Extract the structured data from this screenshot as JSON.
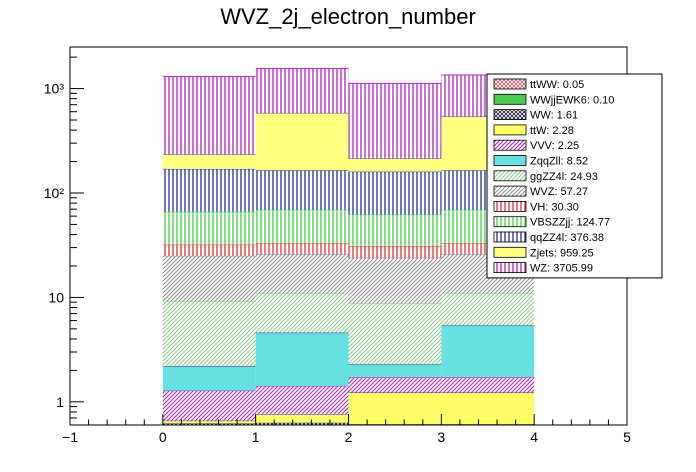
{
  "chart_data": {
    "type": "bar",
    "stacked": true,
    "title": "WVZ_2j_electron_number",
    "xlabel": "",
    "ylabel": "",
    "xlim": [
      -1,
      5
    ],
    "ylim": [
      0.6,
      2500
    ],
    "yscale": "log",
    "xticks": [
      "−1",
      "0",
      "1",
      "2",
      "3",
      "4",
      "5"
    ],
    "yticks": [
      {
        "value": 1,
        "label": "1"
      },
      {
        "value": 10,
        "label": "10"
      },
      {
        "value": 100,
        "label": "10²"
      },
      {
        "value": 1000,
        "label": "10³"
      }
    ],
    "bins": [
      [
        0,
        1
      ],
      [
        1,
        2
      ],
      [
        2,
        3
      ],
      [
        3,
        4
      ]
    ],
    "legend_position": "top-right",
    "stack_order_bottom_to_top": [
      "ttWW",
      "WWjjEWK6",
      "WW",
      "ttW",
      "VVV",
      "ZqqZll",
      "ggZZ4l",
      "WVZ",
      "VH",
      "VBSZZjj",
      "qqZZ4l",
      "Zjets",
      "WZ"
    ],
    "series": [
      {
        "name": "ttWW",
        "legend": "ttWW: 0.05",
        "color": "#c0606a",
        "pattern": "cross",
        "tops": [
          0.01,
          0.02,
          0.01,
          0.01
        ]
      },
      {
        "name": "WWjjEWK6",
        "legend": "WWjjEWK6: 0.10",
        "color": "#4ccc4c",
        "pattern": "solid",
        "tops": [
          0.03,
          0.04,
          0.03,
          0.03
        ]
      },
      {
        "name": "WW",
        "legend": "WW: 1.61",
        "color": "#202040",
        "pattern": "cross",
        "tops": [
          0.62,
          0.63,
          0.61,
          0.61
        ]
      },
      {
        "name": "ttW",
        "legend": "ttW: 2.28",
        "color": "#ffff66",
        "pattern": "solid",
        "tops": [
          0.66,
          0.76,
          1.23,
          1.23
        ]
      },
      {
        "name": "VVV",
        "legend": "VVV: 2.25",
        "color": "#b020c0",
        "pattern": "diag",
        "tops": [
          1.28,
          1.42,
          1.72,
          1.72
        ]
      },
      {
        "name": "ZqqZll",
        "legend": "ZqqZll: 8.52",
        "color": "#66e0e0",
        "pattern": "solid",
        "tops": [
          2.2,
          4.6,
          2.3,
          5.4
        ]
      },
      {
        "name": "ggZZ4l",
        "legend": "ggZZ4l: 24.93",
        "color": "#90cc90",
        "pattern": "diag",
        "tops": [
          9.2,
          11.0,
          8.8,
          11.0
        ]
      },
      {
        "name": "WVZ",
        "legend": "WVZ: 57.27",
        "color": "#909090",
        "pattern": "diag",
        "tops": [
          25.0,
          26.0,
          24.0,
          26.0
        ]
      },
      {
        "name": "VH",
        "legend": "VH: 30.30",
        "color": "#e03030",
        "pattern": "vert",
        "tops": [
          32.0,
          33.0,
          31.0,
          33.0
        ]
      },
      {
        "name": "VBSZZjj",
        "legend": "VBSZZjj: 124.77",
        "color": "#40d040",
        "pattern": "vert",
        "tops": [
          66.0,
          69.0,
          62.0,
          69.0
        ]
      },
      {
        "name": "qqZZ4l",
        "legend": "qqZZ4l: 376.38",
        "color": "#2030a0",
        "pattern": "vert",
        "tops": [
          170.0,
          165.0,
          160.0,
          165.0
        ]
      },
      {
        "name": "Zjets",
        "legend": "Zjets: 959.25",
        "color": "#ffff80",
        "pattern": "solid",
        "tops": [
          235.0,
          585.0,
          215.0,
          540.0
        ]
      },
      {
        "name": "WZ",
        "legend": "WZ: 3705.99",
        "color": "#b020c0",
        "pattern": "vert",
        "tops": [
          1300.0,
          1550.0,
          1120.0,
          1350.0
        ]
      }
    ]
  }
}
